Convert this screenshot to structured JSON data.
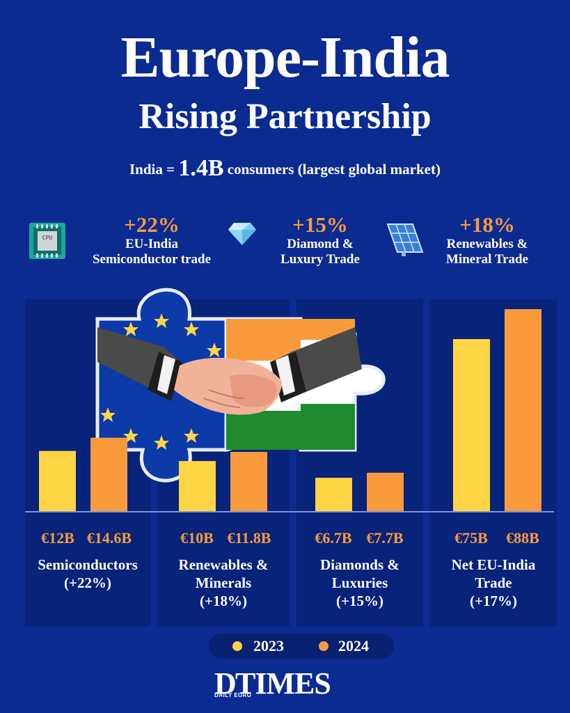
{
  "header": {
    "title_line1": "Europe-India",
    "title_line2": "Rising Partnership",
    "subtitle_pre": "India = ",
    "subtitle_big": "1.4B",
    "subtitle_post": " consumers (largest global market)"
  },
  "stats": [
    {
      "pct": "+22%",
      "line1": "EU-India",
      "line2": "Semiconductor trade",
      "icon": "cpu-chip-icon"
    },
    {
      "pct": "+15%",
      "line1": "Diamond &",
      "line2": "Luxury Trade",
      "icon": "diamond-icon"
    },
    {
      "pct": "+18%",
      "line1": "Renewables &",
      "line2": "Mineral Trade",
      "icon": "solar-panel-icon"
    }
  ],
  "chart_data": {
    "type": "bar",
    "categories": [
      "Semiconductors (+22%)",
      "Renewables & Minerals (+18%)",
      "Diamonds & Luxuries (+15%)",
      "Net EU-India Trade (+17%)"
    ],
    "category_lines": [
      [
        "Semiconductors",
        "(+22%)"
      ],
      [
        "Renewables &",
        "Minerals",
        "(+18%)"
      ],
      [
        "Diamonds &",
        "Luxuries",
        "(+15%)"
      ],
      [
        "Net EU-India",
        "Trade",
        "(+17%)"
      ]
    ],
    "series": [
      {
        "name": "2023",
        "values": [
          12,
          10,
          6.7,
          75
        ],
        "labels": [
          "€12B",
          "€10B",
          "€6.7B",
          "€75B"
        ],
        "color": "#fdd544"
      },
      {
        "name": "2024",
        "values": [
          14.6,
          11.8,
          7.7,
          88
        ],
        "labels": [
          "€14.6B",
          "€11.8B",
          "€7.7B",
          "€88B"
        ],
        "color": "#f99a3c"
      }
    ],
    "unit": "€B",
    "legend_position": "bottom"
  },
  "colors": {
    "background": "#0b2b91",
    "panel": "#07237a",
    "accent_orange": "#f99a3c",
    "accent_yellow": "#fdd544"
  },
  "logo": {
    "daily": "DAILY EURO",
    "times": "TIMES",
    "letter": "D"
  }
}
